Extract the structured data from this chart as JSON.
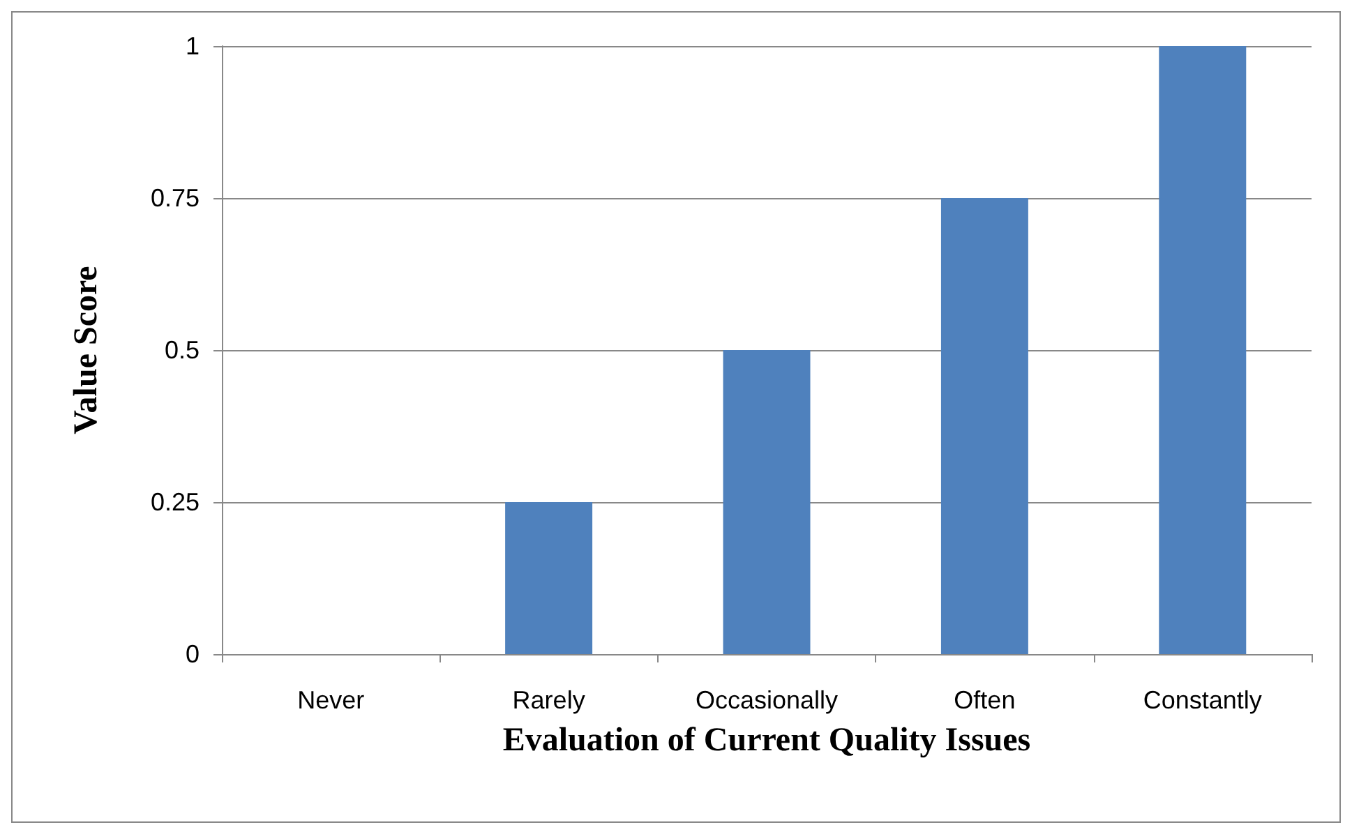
{
  "chart_data": {
    "type": "bar",
    "xlabel": "Evaluation of Current Quality Issues",
    "ylabel": "Value Score",
    "categories": [
      "Never",
      "Rarely",
      "Occasionally",
      "Often",
      "Constantly"
    ],
    "values": [
      0,
      0.25,
      0.5,
      0.75,
      1
    ],
    "color": "#4f81bd",
    "ylim": [
      0,
      1
    ],
    "yticks": [
      0,
      0.25,
      0.5,
      0.75,
      1
    ],
    "grid": "y"
  }
}
